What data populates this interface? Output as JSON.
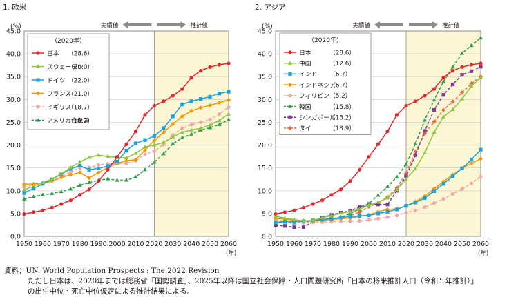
{
  "notes": {
    "line1": "資料：UN.  World Population Prospects : The 2022 Revision",
    "line2": "ただし日本は、2020年までは総務省「国勢調査」、2025年以降は国立社会保障・人口問題研究所「日本の将来推計人口（令和５年推計）」",
    "line3": "の出生中位・死亡中位仮定による推計結果による。"
  },
  "chart_data": [
    {
      "type": "line",
      "title": "1. 欧米",
      "ylabel": "(%)",
      "xlabel": "(年)",
      "ylim": [
        0,
        45
      ],
      "xlim": [
        1950,
        2060
      ],
      "yticks": [
        "0.0",
        "5.0",
        "10.0",
        "15.0",
        "20.0",
        "25.0",
        "30.0",
        "35.0",
        "40.0",
        "45.0"
      ],
      "xticks": [
        "1950",
        "1960",
        "1970",
        "1980",
        "1990",
        "2000",
        "2010",
        "2020",
        "2030",
        "2040",
        "2050",
        "2060"
      ],
      "actual_label": "実績値",
      "projection_label": "推計値",
      "projection_start": 2020,
      "legend_title": "（2020年）",
      "legend_position": "top-left",
      "series": [
        {
          "name": "日本",
          "legend_value": "（28.6）",
          "color": "#e3262d",
          "marker": "circle",
          "dashed": false,
          "x": [
            1950,
            1955,
            1960,
            1965,
            1970,
            1975,
            1980,
            1985,
            1990,
            1995,
            2000,
            2005,
            2010,
            2015,
            2020,
            2025,
            2030,
            2035,
            2040,
            2045,
            2050,
            2055,
            2060
          ],
          "values": [
            4.9,
            5.3,
            5.7,
            6.3,
            7.1,
            7.9,
            9.1,
            10.3,
            12.1,
            14.6,
            17.4,
            20.2,
            23.0,
            26.6,
            28.6,
            29.6,
            30.8,
            32.3,
            34.8,
            36.3,
            37.1,
            37.6,
            37.9
          ]
        },
        {
          "name": "スウェーデン",
          "legend_value": "（20.0）",
          "color": "#8cc63e",
          "marker": "triangle",
          "dashed": false,
          "x": [
            1950,
            1955,
            1960,
            1965,
            1970,
            1975,
            1980,
            1985,
            1990,
            1995,
            2000,
            2005,
            2010,
            2015,
            2020,
            2025,
            2030,
            2035,
            2040,
            2045,
            2050,
            2055,
            2060
          ],
          "values": [
            10.2,
            11.0,
            11.8,
            12.6,
            13.7,
            15.1,
            16.3,
            17.3,
            17.8,
            17.5,
            17.3,
            17.2,
            18.2,
            19.6,
            20.0,
            20.6,
            21.8,
            22.8,
            23.3,
            23.7,
            24.4,
            25.4,
            26.8
          ]
        },
        {
          "name": "ドイツ",
          "legend_value": "（22.0）",
          "color": "#1ba1dc",
          "marker": "square",
          "dashed": false,
          "x": [
            1950,
            1955,
            1960,
            1965,
            1970,
            1975,
            1980,
            1985,
            1990,
            1995,
            2000,
            2005,
            2010,
            2015,
            2020,
            2025,
            2030,
            2035,
            2040,
            2045,
            2050,
            2055,
            2060
          ],
          "values": [
            9.5,
            10.5,
            11.5,
            12.5,
            13.6,
            14.8,
            15.5,
            14.6,
            14.9,
            15.4,
            16.4,
            18.8,
            20.4,
            21.1,
            22.0,
            23.7,
            26.3,
            28.9,
            29.6,
            30.1,
            30.6,
            31.3,
            31.7
          ]
        },
        {
          "name": "フランス",
          "legend_value": "（21.0）",
          "color": "#f39800",
          "marker": "diamond",
          "dashed": false,
          "x": [
            1950,
            1955,
            1960,
            1965,
            1970,
            1975,
            1980,
            1985,
            1990,
            1995,
            2000,
            2005,
            2010,
            2015,
            2020,
            2025,
            2030,
            2035,
            2040,
            2045,
            2050,
            2055,
            2060
          ],
          "values": [
            11.4,
            11.5,
            11.6,
            12.1,
            12.9,
            13.5,
            14.0,
            12.8,
            14.0,
            15.1,
            16.0,
            16.6,
            16.8,
            18.9,
            21.0,
            22.8,
            24.6,
            26.3,
            27.5,
            28.2,
            28.7,
            29.3,
            29.9
          ]
        },
        {
          "name": "イギリス",
          "legend_value": "（18.7）",
          "color": "#f3a6a6",
          "marker": "circle",
          "dashed": true,
          "x": [
            1950,
            1955,
            1960,
            1965,
            1970,
            1975,
            1980,
            1985,
            1990,
            1995,
            2000,
            2005,
            2010,
            2015,
            2020,
            2025,
            2030,
            2035,
            2040,
            2045,
            2050,
            2055,
            2060
          ],
          "values": [
            10.8,
            11.3,
            11.7,
            12.2,
            13.0,
            14.1,
            15.0,
            15.1,
            15.7,
            15.9,
            15.9,
            16.0,
            16.6,
            18.0,
            18.7,
            20.1,
            22.2,
            23.7,
            24.5,
            25.0,
            25.6,
            26.8,
            28.3
          ]
        },
        {
          "name": "アメリカ合衆国",
          "legend_value": "（16.2）",
          "color": "#2e9c48",
          "marker": "triangle",
          "dashed": true,
          "x": [
            1950,
            1955,
            1960,
            1965,
            1970,
            1975,
            1980,
            1985,
            1990,
            1995,
            2000,
            2005,
            2010,
            2015,
            2020,
            2025,
            2030,
            2035,
            2040,
            2045,
            2050,
            2055,
            2060
          ],
          "values": [
            8.2,
            8.7,
            9.1,
            9.4,
            9.8,
            10.4,
            11.2,
            11.8,
            12.3,
            12.6,
            12.3,
            12.3,
            13.0,
            14.6,
            16.2,
            18.1,
            20.3,
            21.6,
            22.4,
            23.3,
            23.8,
            24.5,
            25.6
          ]
        }
      ]
    },
    {
      "type": "line",
      "title": "2. アジア",
      "ylabel": "(%)",
      "xlabel": "(年)",
      "ylim": [
        0,
        45
      ],
      "xlim": [
        1950,
        2060
      ],
      "yticks": [
        "0.0",
        "5.0",
        "10.0",
        "15.0",
        "20.0",
        "25.0",
        "30.0",
        "35.0",
        "40.0",
        "45.0"
      ],
      "xticks": [
        "1950",
        "1960",
        "1970",
        "1980",
        "1990",
        "2000",
        "2010",
        "2020",
        "2030",
        "2040",
        "2050",
        "2060"
      ],
      "actual_label": "実績値",
      "projection_label": "推計値",
      "projection_start": 2020,
      "legend_title": "（2020年）",
      "legend_position": "top-left",
      "series": [
        {
          "name": "日本",
          "legend_value": "（28.6）",
          "color": "#e3262d",
          "marker": "circle",
          "dashed": false,
          "x": [
            1950,
            1955,
            1960,
            1965,
            1970,
            1975,
            1980,
            1985,
            1990,
            1995,
            2000,
            2005,
            2010,
            2015,
            2020,
            2025,
            2030,
            2035,
            2040,
            2045,
            2050,
            2055,
            2060
          ],
          "values": [
            4.9,
            5.3,
            5.7,
            6.3,
            7.1,
            7.9,
            9.1,
            10.3,
            12.1,
            14.6,
            17.4,
            20.2,
            23.0,
            26.6,
            28.6,
            29.6,
            30.8,
            32.3,
            34.8,
            36.3,
            37.1,
            37.6,
            37.9
          ]
        },
        {
          "name": "中国",
          "legend_value": "（12.6）",
          "color": "#8cc63e",
          "marker": "triangle",
          "dashed": false,
          "x": [
            1950,
            1955,
            1960,
            1965,
            1970,
            1975,
            1980,
            1985,
            1990,
            1995,
            2000,
            2005,
            2010,
            2015,
            2020,
            2025,
            2030,
            2035,
            2040,
            2045,
            2050,
            2055,
            2060
          ],
          "values": [
            4.4,
            4.0,
            3.7,
            3.4,
            3.5,
            4.1,
            4.5,
            5.1,
            5.4,
            6.0,
            6.8,
            7.5,
            8.4,
            10.2,
            12.6,
            14.8,
            18.3,
            22.8,
            26.2,
            27.8,
            30.1,
            32.9,
            34.8
          ]
        },
        {
          "name": "インド",
          "legend_value": "（6.7）",
          "color": "#1ba1dc",
          "marker": "square",
          "dashed": false,
          "x": [
            1950,
            1955,
            1960,
            1965,
            1970,
            1975,
            1980,
            1985,
            1990,
            1995,
            2000,
            2005,
            2010,
            2015,
            2020,
            2025,
            2030,
            2035,
            2040,
            2045,
            2050,
            2055,
            2060
          ],
          "values": [
            3.1,
            3.2,
            3.2,
            3.3,
            3.5,
            3.7,
            3.9,
            4.1,
            4.3,
            4.5,
            4.6,
            5.0,
            5.4,
            5.9,
            6.7,
            7.4,
            8.4,
            9.9,
            11.5,
            13.2,
            14.9,
            16.8,
            19.0
          ]
        },
        {
          "name": "インドネシア",
          "legend_value": "（6.7）",
          "color": "#f39800",
          "marker": "diamond",
          "dashed": false,
          "x": [
            1950,
            1955,
            1960,
            1965,
            1970,
            1975,
            1980,
            1985,
            1990,
            1995,
            2000,
            2005,
            2010,
            2015,
            2020,
            2025,
            2030,
            2035,
            2040,
            2045,
            2050,
            2055,
            2060
          ],
          "values": [
            3.9,
            3.8,
            3.5,
            3.4,
            3.3,
            3.5,
            3.7,
            3.9,
            4.0,
            4.4,
            4.7,
            5.4,
            5.9,
            6.0,
            6.7,
            7.6,
            8.8,
            10.4,
            12.0,
            13.5,
            14.9,
            16.0,
            17.0
          ]
        },
        {
          "name": "フィリピン",
          "legend_value": "（5.2）",
          "color": "#f3a6a6",
          "marker": "circle",
          "dashed": true,
          "x": [
            1950,
            1955,
            1960,
            1965,
            1970,
            1975,
            1980,
            1985,
            1990,
            1995,
            2000,
            2005,
            2010,
            2015,
            2020,
            2025,
            2030,
            2035,
            2040,
            2045,
            2050,
            2055,
            2060
          ],
          "values": [
            3.6,
            3.4,
            3.0,
            3.0,
            3.1,
            3.1,
            3.2,
            3.3,
            3.3,
            3.4,
            3.6,
            3.9,
            4.2,
            4.6,
            5.2,
            5.7,
            6.4,
            7.3,
            8.2,
            9.3,
            10.4,
            11.6,
            13.1
          ]
        },
        {
          "name": "韓国",
          "legend_value": "（15.8）",
          "color": "#2e9c48",
          "marker": "triangle",
          "dashed": true,
          "x": [
            1950,
            1955,
            1960,
            1965,
            1970,
            1975,
            1980,
            1985,
            1990,
            1995,
            2000,
            2005,
            2010,
            2015,
            2020,
            2025,
            2030,
            2035,
            2040,
            2045,
            2050,
            2055,
            2060
          ],
          "values": [
            2.9,
            3.1,
            2.9,
            3.1,
            3.3,
            3.5,
            3.8,
            4.2,
            5.0,
            5.9,
            7.2,
            9.0,
            10.9,
            13.0,
            15.8,
            20.3,
            25.5,
            29.9,
            33.9,
            37.1,
            40.1,
            41.8,
            43.5
          ]
        },
        {
          "name": "シンガポール",
          "legend_value": "（13.2）",
          "color": "#7b3b94",
          "marker": "square",
          "dashed": true,
          "x": [
            1950,
            1955,
            1960,
            1965,
            1970,
            1975,
            1980,
            1985,
            1990,
            1995,
            2000,
            2005,
            2010,
            2015,
            2020,
            2025,
            2030,
            2035,
            2040,
            2045,
            2050,
            2055,
            2060
          ],
          "values": [
            2.4,
            2.3,
            2.0,
            2.0,
            3.2,
            4.1,
            4.7,
            5.2,
            5.6,
            6.4,
            7.1,
            7.0,
            7.0,
            10.0,
            13.2,
            17.8,
            23.1,
            27.7,
            31.0,
            33.3,
            35.4,
            36.2,
            37.2
          ]
        },
        {
          "name": "タイ",
          "legend_value": "（13.9）",
          "color": "#ec6d3c",
          "marker": "diamond",
          "dashed": true,
          "x": [
            1950,
            1955,
            1960,
            1965,
            1970,
            1975,
            1980,
            1985,
            1990,
            1995,
            2000,
            2005,
            2010,
            2015,
            2020,
            2025,
            2030,
            2035,
            2040,
            2045,
            2050,
            2055,
            2060
          ],
          "values": [
            3.1,
            3.3,
            3.2,
            3.4,
            3.5,
            3.6,
            3.8,
            4.2,
            4.5,
            5.3,
            6.5,
            7.3,
            8.6,
            10.6,
            13.9,
            18.6,
            22.5,
            25.1,
            27.7,
            29.5,
            31.5,
            33.5,
            35.0
          ]
        }
      ]
    }
  ]
}
